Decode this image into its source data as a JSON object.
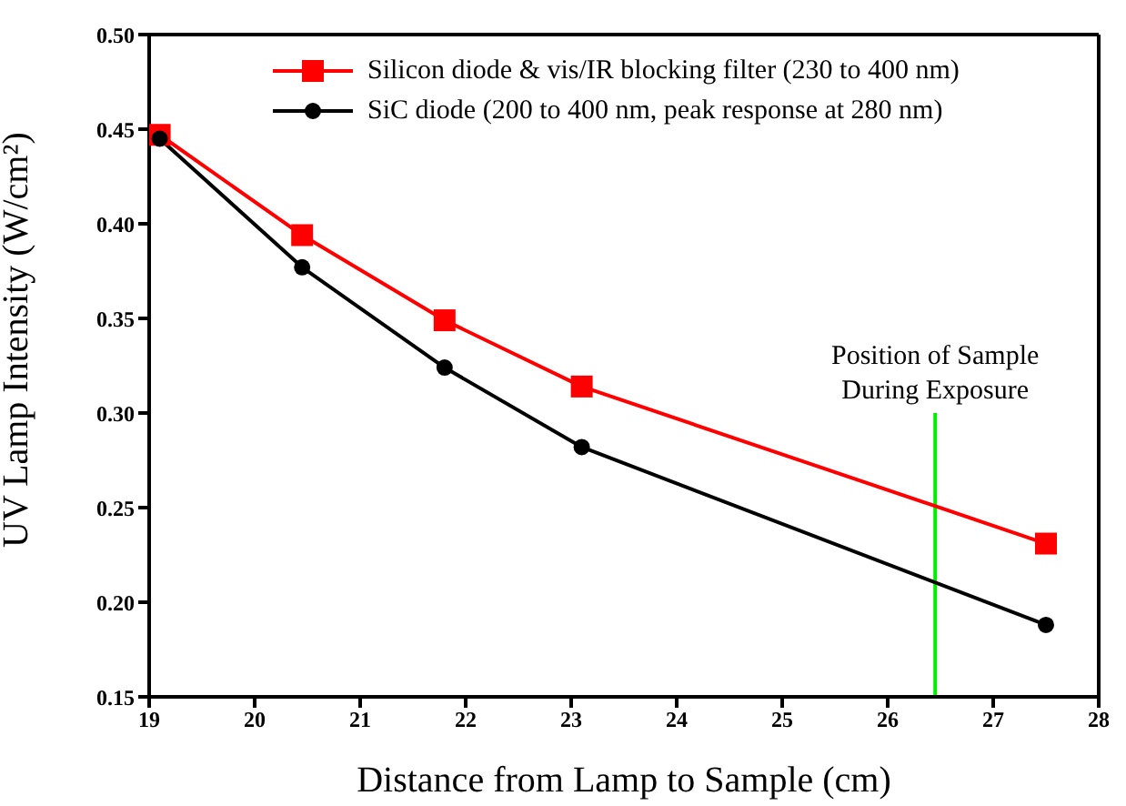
{
  "chart_data": {
    "type": "line",
    "xlabel": "Distance from Lamp to Sample (cm)",
    "ylabel": "UV Lamp Intensity (W/cm²)",
    "x": [
      19.1,
      20.45,
      21.8,
      23.1,
      27.5
    ],
    "series": [
      {
        "name": "Silicon diode & vis/IR blocking filter (230 to 400 nm)",
        "color": "#ff0000",
        "marker": "square",
        "values": [
          0.447,
          0.394,
          0.349,
          0.314,
          0.231
        ]
      },
      {
        "name": "SiC diode (200 to 400 nm, peak response at 280 nm)",
        "color": "#000000",
        "marker": "circle",
        "values": [
          0.445,
          0.377,
          0.324,
          0.282,
          0.188
        ]
      }
    ],
    "xlim": [
      19,
      28
    ],
    "xticks": [
      19,
      20,
      21,
      22,
      23,
      24,
      25,
      26,
      27,
      28
    ],
    "ylim": [
      0.15,
      0.5
    ],
    "yticks": [
      0.15,
      {
        "value": 0.2,
        "label": "0.20"
      },
      0.25,
      {
        "value": 0.3,
        "label": "0.30"
      },
      0.35,
      {
        "value": 0.4,
        "label": "0.40"
      },
      0.45,
      {
        "value": 0.5,
        "label": "0.50"
      }
    ],
    "ref_lines": [
      {
        "axis": "x",
        "value": 26.45,
        "color": "#00ee00"
      }
    ],
    "annotations": [
      {
        "text": "Position of Sample\nDuring Exposure",
        "x": 26.45,
        "y": 0.3
      }
    ],
    "legend": "top right",
    "line_style": "solid"
  }
}
